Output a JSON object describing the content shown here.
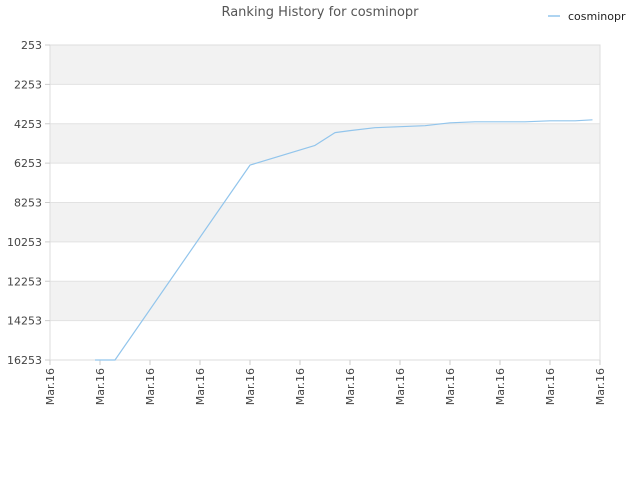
{
  "chart_data": {
    "type": "line",
    "title": "Ranking History for cosminopr",
    "xlabel": "",
    "ylabel": "",
    "y_reversed": true,
    "ylim": [
      253,
      16253
    ],
    "y_ticks": [
      253,
      2253,
      4253,
      6253,
      8253,
      10253,
      12253,
      14253,
      16253
    ],
    "y_tick_labels": [
      "253",
      "2253",
      "4253",
      "6253",
      "8253",
      "10253",
      "12253",
      "14253",
      "16253"
    ],
    "x_tick_labels": [
      "Mar.16",
      "Mar.16",
      "Mar.16",
      "Mar.16",
      "Mar.16",
      "Mar.16",
      "Mar.16",
      "Mar.16",
      "Mar.16",
      "Mar.16",
      "Mar.16",
      "Mar.16"
    ],
    "grid": true,
    "legend": {
      "position": "top-right",
      "entries": [
        "cosminopr"
      ]
    },
    "series": [
      {
        "name": "cosminopr",
        "color": "#92c5ec",
        "x": [
          0.9,
          1.3,
          4.0,
          5.3,
          5.7,
          6.0,
          6.5,
          7.0,
          7.5,
          8.0,
          8.5,
          9.0,
          9.5,
          10.0,
          10.5,
          10.85
        ],
        "y": [
          16253,
          16253,
          6353,
          5353,
          4703,
          4603,
          4453,
          4403,
          4353,
          4203,
          4153,
          4153,
          4153,
          4103,
          4103,
          4053
        ]
      }
    ]
  }
}
